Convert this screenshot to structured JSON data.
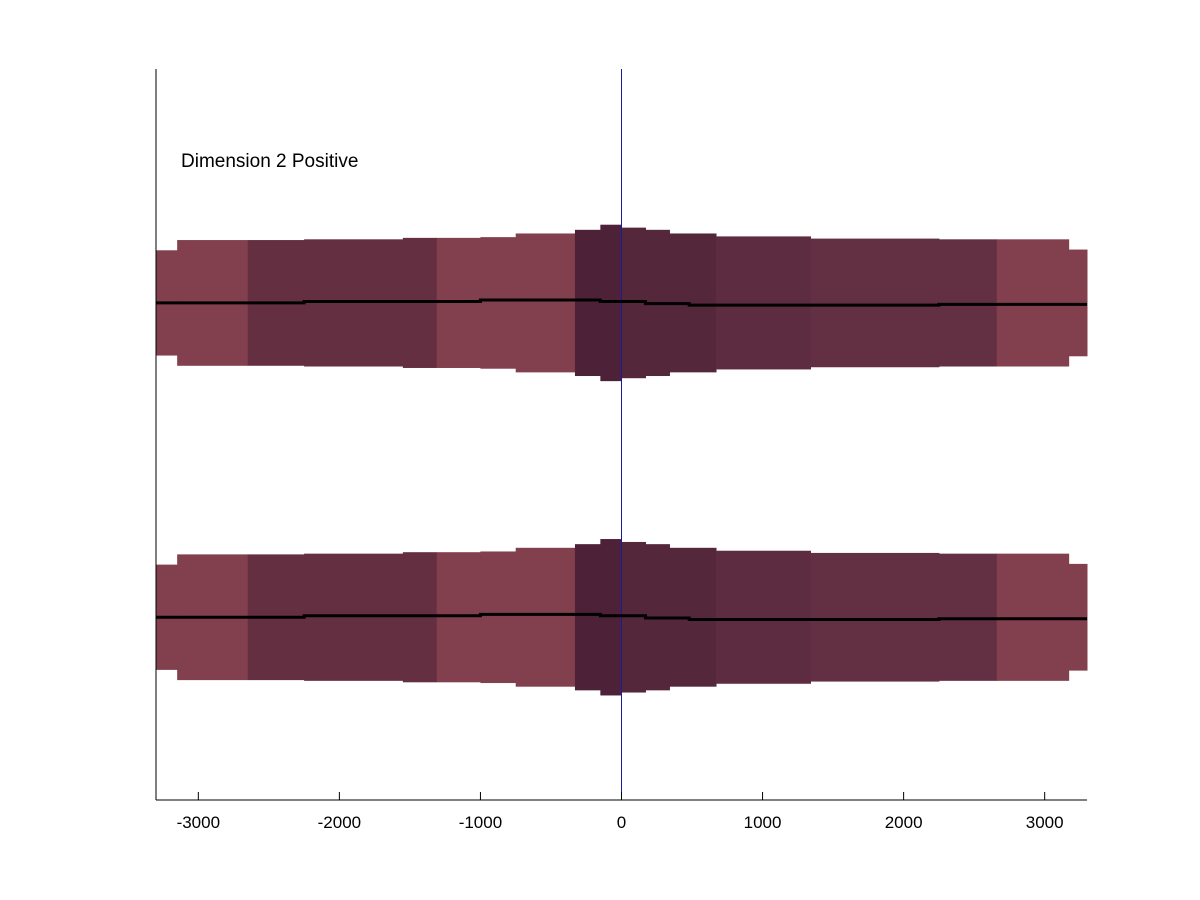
{
  "chart_data": {
    "type": "area",
    "annotation": "Dimension 2 Positive",
    "xlim": [
      -3300,
      3300
    ],
    "xticks": [
      -3000,
      -2000,
      -1000,
      0,
      1000,
      2000,
      3000
    ],
    "xtick_labels": [
      "-3000",
      "-2000",
      "-1000",
      "0",
      "1000",
      "2000",
      "3000"
    ],
    "yaxis_visible": false,
    "grid": false,
    "zero_line": {
      "x": 0,
      "color": "#1a1aa0"
    },
    "line_color": "#000000",
    "bands": [
      {
        "center_y": 0.68,
        "segments": [
          {
            "x0": -3300,
            "x1": -3150,
            "half_width": 0.072,
            "color": "#823f4e"
          },
          {
            "x0": -3150,
            "x1": -2650,
            "half_width": 0.086,
            "color": "#823f4e"
          },
          {
            "x0": -2650,
            "x1": -2250,
            "half_width": 0.086,
            "color": "#652f42"
          },
          {
            "x0": -2250,
            "x1": -1550,
            "half_width": 0.087,
            "color": "#652f42"
          },
          {
            "x0": -1550,
            "x1": -1310,
            "half_width": 0.089,
            "color": "#652f42"
          },
          {
            "x0": -1310,
            "x1": -1000,
            "half_width": 0.089,
            "color": "#823f4e"
          },
          {
            "x0": -1000,
            "x1": -750,
            "half_width": 0.09,
            "color": "#823f4e"
          },
          {
            "x0": -750,
            "x1": -330,
            "half_width": 0.095,
            "color": "#823f4e"
          },
          {
            "x0": -330,
            "x1": -150,
            "half_width": 0.1,
            "color": "#4d2238"
          },
          {
            "x0": -150,
            "x1": 0,
            "half_width": 0.107,
            "color": "#4d2238"
          },
          {
            "x0": 0,
            "x1": 170,
            "half_width": 0.103,
            "color": "#55273b"
          },
          {
            "x0": 170,
            "x1": 340,
            "half_width": 0.1,
            "color": "#55273b"
          },
          {
            "x0": 340,
            "x1": 670,
            "half_width": 0.095,
            "color": "#55273b"
          },
          {
            "x0": 670,
            "x1": 1340,
            "half_width": 0.091,
            "color": "#5e2c41"
          },
          {
            "x0": 1340,
            "x1": 2250,
            "half_width": 0.088,
            "color": "#632f43"
          },
          {
            "x0": 2250,
            "x1": 2660,
            "half_width": 0.087,
            "color": "#632f43"
          },
          {
            "x0": 2660,
            "x1": 3170,
            "half_width": 0.087,
            "color": "#823f4e"
          },
          {
            "x0": 3170,
            "x1": 3300,
            "half_width": 0.073,
            "color": "#823f4e"
          }
        ],
        "line": [
          {
            "x": -3300,
            "y": 0.68
          },
          {
            "x": -2250,
            "y": 0.68
          },
          {
            "x": -2250,
            "y": 0.682
          },
          {
            "x": -1000,
            "y": 0.682
          },
          {
            "x": -1000,
            "y": 0.684
          },
          {
            "x": -150,
            "y": 0.684
          },
          {
            "x": -150,
            "y": 0.682
          },
          {
            "x": 170,
            "y": 0.682
          },
          {
            "x": 170,
            "y": 0.679
          },
          {
            "x": 480,
            "y": 0.679
          },
          {
            "x": 480,
            "y": 0.677
          },
          {
            "x": 2250,
            "y": 0.677
          },
          {
            "x": 2250,
            "y": 0.678
          },
          {
            "x": 3300,
            "y": 0.678
          }
        ]
      },
      {
        "center_y": 0.25,
        "segments": [
          {
            "x0": -3300,
            "x1": -3150,
            "half_width": 0.072,
            "color": "#823f4e"
          },
          {
            "x0": -3150,
            "x1": -2650,
            "half_width": 0.086,
            "color": "#823f4e"
          },
          {
            "x0": -2650,
            "x1": -2250,
            "half_width": 0.086,
            "color": "#652f42"
          },
          {
            "x0": -2250,
            "x1": -1550,
            "half_width": 0.087,
            "color": "#652f42"
          },
          {
            "x0": -1550,
            "x1": -1310,
            "half_width": 0.089,
            "color": "#652f42"
          },
          {
            "x0": -1310,
            "x1": -1000,
            "half_width": 0.089,
            "color": "#823f4e"
          },
          {
            "x0": -1000,
            "x1": -750,
            "half_width": 0.09,
            "color": "#823f4e"
          },
          {
            "x0": -750,
            "x1": -330,
            "half_width": 0.095,
            "color": "#823f4e"
          },
          {
            "x0": -330,
            "x1": -150,
            "half_width": 0.1,
            "color": "#4d2238"
          },
          {
            "x0": -150,
            "x1": 0,
            "half_width": 0.107,
            "color": "#4d2238"
          },
          {
            "x0": 0,
            "x1": 170,
            "half_width": 0.103,
            "color": "#55273b"
          },
          {
            "x0": 170,
            "x1": 340,
            "half_width": 0.1,
            "color": "#55273b"
          },
          {
            "x0": 340,
            "x1": 670,
            "half_width": 0.095,
            "color": "#55273b"
          },
          {
            "x0": 670,
            "x1": 1340,
            "half_width": 0.091,
            "color": "#5e2c41"
          },
          {
            "x0": 1340,
            "x1": 2250,
            "half_width": 0.088,
            "color": "#632f43"
          },
          {
            "x0": 2250,
            "x1": 2660,
            "half_width": 0.087,
            "color": "#632f43"
          },
          {
            "x0": 2660,
            "x1": 3170,
            "half_width": 0.087,
            "color": "#823f4e"
          },
          {
            "x0": 3170,
            "x1": 3300,
            "half_width": 0.073,
            "color": "#823f4e"
          }
        ],
        "line": [
          {
            "x": -3300,
            "y": 0.25
          },
          {
            "x": -2250,
            "y": 0.25
          },
          {
            "x": -2250,
            "y": 0.252
          },
          {
            "x": -1000,
            "y": 0.252
          },
          {
            "x": -1000,
            "y": 0.254
          },
          {
            "x": -150,
            "y": 0.254
          },
          {
            "x": -150,
            "y": 0.252
          },
          {
            "x": 170,
            "y": 0.252
          },
          {
            "x": 170,
            "y": 0.249
          },
          {
            "x": 480,
            "y": 0.249
          },
          {
            "x": 480,
            "y": 0.247
          },
          {
            "x": 2250,
            "y": 0.247
          },
          {
            "x": 2250,
            "y": 0.248
          },
          {
            "x": 3300,
            "y": 0.248
          }
        ]
      }
    ]
  }
}
